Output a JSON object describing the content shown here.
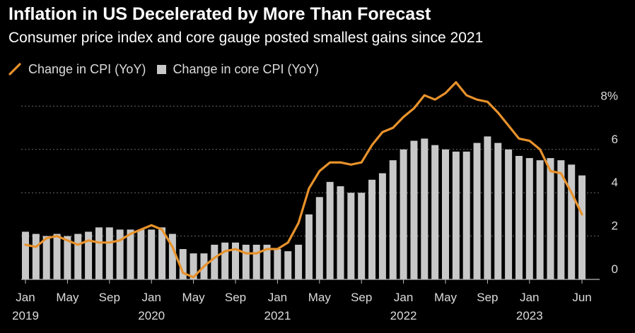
{
  "title": "Inflation in US Decelerated by More Than Forecast",
  "subtitle": "Consumer price index and core gauge posted smallest gains since 2021",
  "legend": {
    "cpi": "Change in CPI (YoY)",
    "core": "Change in core CPI (YoY)"
  },
  "colors": {
    "cpi_line": "#e8922b",
    "core_bars": "#c8c8c8",
    "grid": "#6a6a6a",
    "background": "#000000"
  },
  "chart_data": {
    "type": "bar",
    "months": [
      "2019-01",
      "2019-02",
      "2019-03",
      "2019-04",
      "2019-05",
      "2019-06",
      "2019-07",
      "2019-08",
      "2019-09",
      "2019-10",
      "2019-11",
      "2019-12",
      "2020-01",
      "2020-02",
      "2020-03",
      "2020-04",
      "2020-05",
      "2020-06",
      "2020-07",
      "2020-08",
      "2020-09",
      "2020-10",
      "2020-11",
      "2020-12",
      "2021-01",
      "2021-02",
      "2021-03",
      "2021-04",
      "2021-05",
      "2021-06",
      "2021-07",
      "2021-08",
      "2021-09",
      "2021-10",
      "2021-11",
      "2021-12",
      "2022-01",
      "2022-02",
      "2022-03",
      "2022-04",
      "2022-05",
      "2022-06",
      "2022-07",
      "2022-08",
      "2022-09",
      "2022-10",
      "2022-11",
      "2022-12",
      "2023-01",
      "2023-02",
      "2023-03",
      "2023-04",
      "2023-05",
      "2023-06"
    ],
    "series": [
      {
        "name": "Change in core CPI (YoY)",
        "type": "bar",
        "values": [
          2.2,
          2.1,
          2.0,
          2.1,
          2.0,
          2.1,
          2.2,
          2.4,
          2.4,
          2.3,
          2.3,
          2.3,
          2.3,
          2.4,
          2.1,
          1.4,
          1.2,
          1.2,
          1.6,
          1.7,
          1.7,
          1.6,
          1.6,
          1.6,
          1.4,
          1.3,
          1.6,
          3.0,
          3.8,
          4.5,
          4.3,
          4.0,
          4.0,
          4.6,
          4.9,
          5.5,
          6.0,
          6.4,
          6.5,
          6.2,
          6.0,
          5.9,
          5.9,
          6.3,
          6.6,
          6.3,
          6.0,
          5.7,
          5.6,
          5.5,
          5.6,
          5.5,
          5.3,
          4.8
        ]
      },
      {
        "name": "Change in CPI (YoY)",
        "type": "line",
        "values": [
          1.6,
          1.5,
          1.9,
          2.0,
          1.8,
          1.6,
          1.8,
          1.7,
          1.7,
          1.8,
          2.1,
          2.3,
          2.5,
          2.3,
          1.5,
          0.3,
          0.1,
          0.6,
          1.0,
          1.3,
          1.4,
          1.2,
          1.2,
          1.4,
          1.4,
          1.7,
          2.6,
          4.2,
          5.0,
          5.4,
          5.4,
          5.3,
          5.4,
          6.2,
          6.8,
          7.0,
          7.5,
          7.9,
          8.5,
          8.3,
          8.6,
          9.1,
          8.5,
          8.3,
          8.2,
          7.7,
          7.1,
          6.5,
          6.4,
          6.0,
          5.0,
          4.9,
          4.0,
          3.0
        ]
      }
    ],
    "x_tick_labels": [
      {
        "month": "Jan",
        "year": "2019"
      },
      {
        "month": "May",
        "year": ""
      },
      {
        "month": "Sep",
        "year": ""
      },
      {
        "month": "Jan",
        "year": "2020"
      },
      {
        "month": "May",
        "year": ""
      },
      {
        "month": "Sep",
        "year": ""
      },
      {
        "month": "Jan",
        "year": "2021"
      },
      {
        "month": "May",
        "year": ""
      },
      {
        "month": "Sep",
        "year": ""
      },
      {
        "month": "Jan",
        "year": "2022"
      },
      {
        "month": "May",
        "year": ""
      },
      {
        "month": "Sep",
        "year": ""
      },
      {
        "month": "Jan",
        "year": "2023"
      },
      {
        "month": "Jun",
        "year": ""
      }
    ],
    "x_tick_months": [
      "2019-01",
      "2019-05",
      "2019-09",
      "2020-01",
      "2020-05",
      "2020-09",
      "2021-01",
      "2021-05",
      "2021-09",
      "2022-01",
      "2022-05",
      "2022-09",
      "2023-01",
      "2023-06"
    ],
    "y_ticks": [
      0,
      2,
      4,
      6,
      8
    ],
    "y_tick_labels": [
      "0",
      "2",
      "4",
      "6",
      "8%"
    ],
    "ylim": [
      0,
      9.3
    ],
    "grid": true,
    "legend_position": "top-left",
    "y_axis_position": "right"
  }
}
